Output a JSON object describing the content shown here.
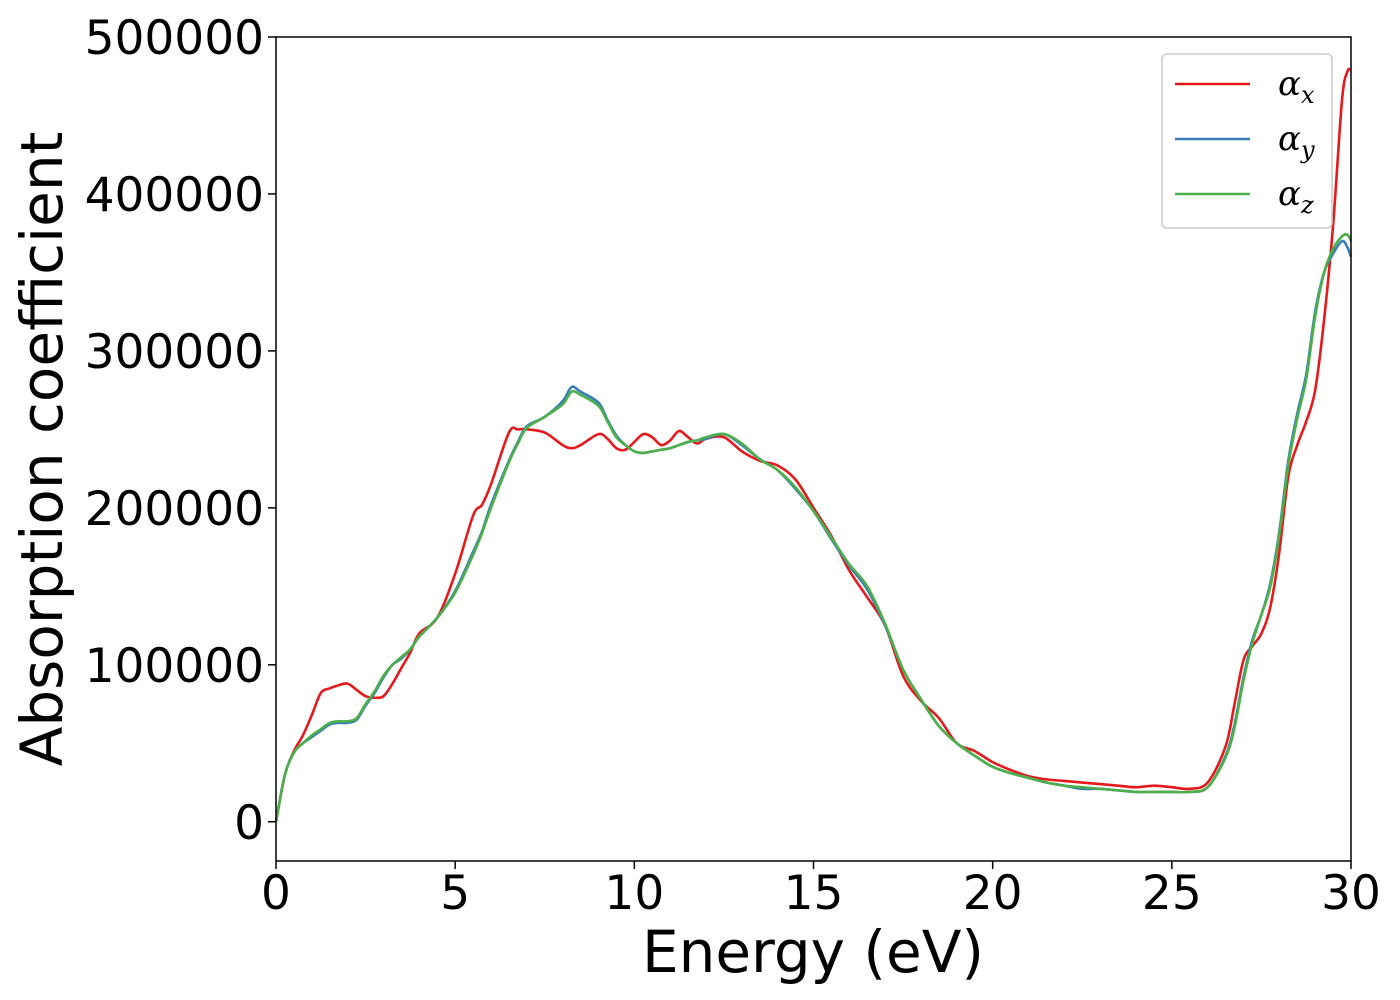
{
  "chart_data": {
    "type": "line",
    "xlabel": "Energy (eV)",
    "ylabel": "Absorption coefficient",
    "xlim": [
      0,
      30
    ],
    "ylim": [
      -25000,
      500000
    ],
    "xticks": [
      0,
      5,
      10,
      15,
      20,
      25,
      30
    ],
    "xtick_labels": [
      "0",
      "5",
      "10",
      "15",
      "20",
      "25",
      "30"
    ],
    "yticks": [
      0,
      100000,
      200000,
      300000,
      400000,
      500000
    ],
    "ytick_labels": [
      "0",
      "100000",
      "200000",
      "300000",
      "400000",
      "500000"
    ],
    "grid": false,
    "legend_position": "top-right",
    "x": [
      0,
      0.25,
      0.5,
      0.75,
      1.0,
      1.25,
      1.5,
      1.75,
      2.0,
      2.25,
      2.5,
      2.75,
      3.0,
      3.25,
      3.5,
      3.75,
      4.0,
      4.5,
      5.0,
      5.5,
      5.75,
      6.0,
      6.5,
      6.75,
      7.0,
      7.5,
      8.0,
      8.25,
      8.5,
      9.0,
      9.25,
      9.5,
      9.75,
      10.0,
      10.25,
      10.5,
      10.75,
      11.0,
      11.25,
      11.5,
      11.75,
      12.0,
      12.5,
      13.0,
      13.5,
      14.0,
      14.5,
      15.0,
      15.5,
      16.0,
      16.5,
      17.0,
      17.5,
      18.0,
      18.5,
      19.0,
      19.5,
      20.0,
      20.5,
      21.0,
      21.5,
      22.0,
      22.5,
      23.0,
      23.5,
      24.0,
      24.5,
      25.0,
      25.5,
      26.0,
      26.5,
      26.75,
      27.0,
      27.25,
      27.5,
      27.75,
      28.0,
      28.25,
      28.5,
      28.75,
      29.0,
      29.25,
      29.5,
      29.75,
      29.9,
      30.0
    ],
    "series": [
      {
        "name": "α_x",
        "label_main": "α",
        "label_sub": "x",
        "color": "#e41a1c",
        "values": [
          0,
          30000,
          45000,
          55000,
          68000,
          82000,
          85000,
          87000,
          88000,
          84000,
          80000,
          79000,
          80000,
          88000,
          98000,
          108000,
          120000,
          130000,
          158000,
          195000,
          202000,
          215000,
          248000,
          250000,
          250000,
          248000,
          240000,
          238000,
          240000,
          247000,
          244000,
          238000,
          237000,
          242000,
          247000,
          245000,
          240000,
          243000,
          249000,
          245000,
          241000,
          244000,
          245000,
          236000,
          230000,
          227000,
          218000,
          200000,
          182000,
          160000,
          143000,
          125000,
          93000,
          77000,
          66000,
          50000,
          45000,
          38000,
          33000,
          29000,
          27000,
          26000,
          25000,
          24000,
          23000,
          22000,
          23000,
          22000,
          21000,
          25000,
          48000,
          75000,
          103000,
          112000,
          120000,
          137000,
          172000,
          220000,
          240000,
          255000,
          275000,
          320000,
          380000,
          460000,
          478000,
          479000
        ]
      },
      {
        "name": "α_y",
        "label_main": "α",
        "label_sub": "y",
        "color": "#377eb8",
        "values": [
          0,
          30000,
          44000,
          50000,
          54000,
          58000,
          62000,
          63000,
          63000,
          65000,
          74000,
          82000,
          92000,
          100000,
          104000,
          110000,
          118000,
          130000,
          147000,
          172000,
          185000,
          202000,
          230000,
          242000,
          252000,
          258000,
          268000,
          277000,
          274000,
          267000,
          256000,
          246000,
          240000,
          236000,
          235000,
          236000,
          237000,
          238000,
          240000,
          242000,
          243000,
          244000,
          247000,
          240000,
          231000,
          224000,
          212000,
          198000,
          180000,
          163000,
          148000,
          125000,
          97000,
          78000,
          61000,
          50000,
          42000,
          35000,
          31000,
          28000,
          25000,
          23000,
          21000,
          21000,
          20000,
          19000,
          19000,
          19000,
          19000,
          22000,
          42000,
          62000,
          92000,
          116000,
          132000,
          152000,
          185000,
          230000,
          260000,
          285000,
          325000,
          350000,
          362000,
          370000,
          366000,
          360000
        ]
      },
      {
        "name": "α_z",
        "label_main": "α",
        "label_sub": "z",
        "color": "#4daf4a",
        "values": [
          0,
          30000,
          44000,
          50000,
          55000,
          59000,
          63000,
          64000,
          64000,
          66000,
          75000,
          83000,
          93000,
          100000,
          105000,
          110000,
          118000,
          130000,
          146000,
          170000,
          184000,
          200000,
          229000,
          241000,
          251000,
          258000,
          266000,
          274000,
          272000,
          265000,
          255000,
          245000,
          240000,
          236000,
          235000,
          236000,
          237000,
          238000,
          240000,
          242000,
          243000,
          245000,
          247000,
          241000,
          231000,
          224000,
          213000,
          198000,
          181000,
          164000,
          150000,
          126000,
          97000,
          78000,
          61000,
          50000,
          42000,
          35000,
          31000,
          28000,
          25000,
          23000,
          22000,
          21000,
          20000,
          19000,
          19000,
          19000,
          19000,
          22000,
          41000,
          60000,
          90000,
          114000,
          132000,
          150000,
          183000,
          227000,
          257000,
          282000,
          322000,
          350000,
          365000,
          373000,
          374000,
          370000
        ]
      }
    ]
  }
}
